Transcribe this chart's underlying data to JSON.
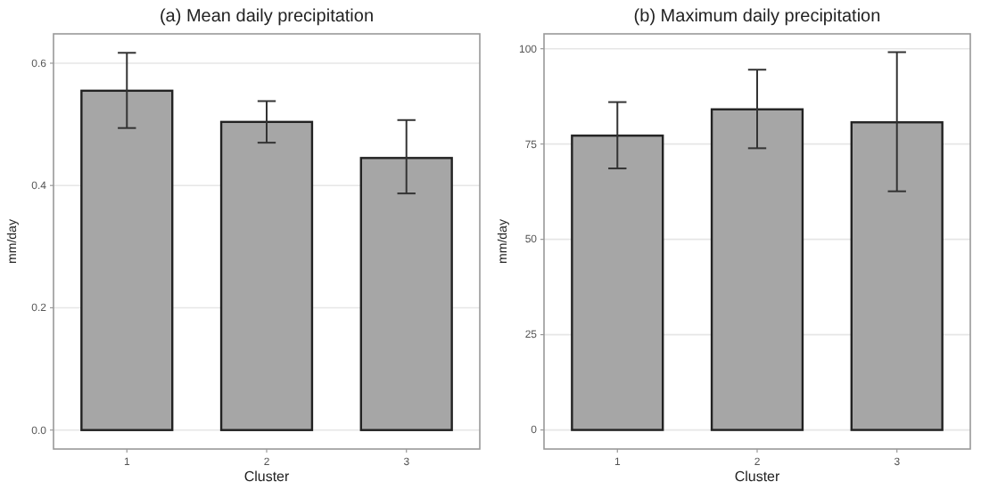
{
  "chart_data": [
    {
      "type": "bar",
      "title": "(a) Mean daily precipitation",
      "xlabel": "Cluster",
      "ylabel": "mm/day",
      "categories": [
        "1",
        "2",
        "3"
      ],
      "values": [
        0.555,
        0.504,
        0.445
      ],
      "color": "#a6a6a6",
      "errors": [
        [
          0.494,
          0.617
        ],
        [
          0.47,
          0.538
        ],
        [
          0.387,
          0.507
        ]
      ],
      "ylim": [
        -0.031,
        0.648
      ],
      "yticks": [
        {
          "value": 0,
          "label": "0.0"
        },
        {
          "value": 0.2,
          "label": "0.2"
        },
        {
          "value": 0.4,
          "label": "0.4"
        },
        {
          "value": 0.6,
          "label": "0.6"
        }
      ],
      "grid": "y"
    },
    {
      "type": "bar",
      "title": "(b) Maximum daily precipitation",
      "xlabel": "Cluster",
      "ylabel": "mm/day",
      "categories": [
        "1",
        "2",
        "3"
      ],
      "values": [
        77.2,
        84.1,
        80.7
      ],
      "color": "#a6a6a6",
      "errors": [
        [
          68.6,
          86.0
        ],
        [
          73.9,
          94.5
        ],
        [
          62.6,
          99.1
        ]
      ],
      "ylim": [
        -5,
        103.9
      ],
      "yticks": [
        0,
        25,
        50,
        75,
        100
      ],
      "grid": "y"
    }
  ]
}
